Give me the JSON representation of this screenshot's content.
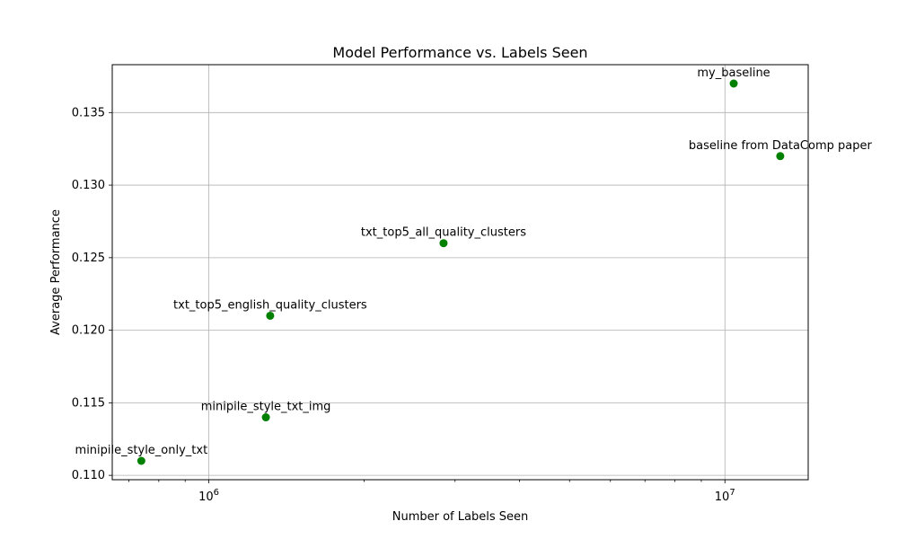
{
  "chart_data": {
    "type": "scatter",
    "title": "Model Performance vs. Labels Seen",
    "xlabel": "Number of Labels Seen",
    "ylabel": "Average Performance",
    "xscale": "log",
    "xlim": [
      650000,
      14500000
    ],
    "ylim": [
      0.1097,
      0.1383
    ],
    "grid": true,
    "marker_color": "#008000",
    "x_major_ticks": [
      1000000,
      10000000
    ],
    "x_major_tick_labels": [
      "10^6",
      "10^7"
    ],
    "y_ticks": [
      0.11,
      0.115,
      0.12,
      0.125,
      0.13,
      0.135
    ],
    "y_tick_labels": [
      "0.110",
      "0.115",
      "0.120",
      "0.125",
      "0.130",
      "0.135"
    ],
    "points": [
      {
        "label": "minipile_style_only_txt",
        "x": 740000,
        "y": 0.111
      },
      {
        "label": "minipile_style_txt_img",
        "x": 1290000,
        "y": 0.114
      },
      {
        "label": "txt_top5_english_quality_clusters",
        "x": 1315000,
        "y": 0.121
      },
      {
        "label": "txt_top5_all_quality_clusters",
        "x": 2850000,
        "y": 0.126
      },
      {
        "label": "my_baseline",
        "x": 10400000,
        "y": 0.137
      },
      {
        "label": "baseline from DataComp paper",
        "x": 12800000,
        "y": 0.132
      }
    ]
  }
}
